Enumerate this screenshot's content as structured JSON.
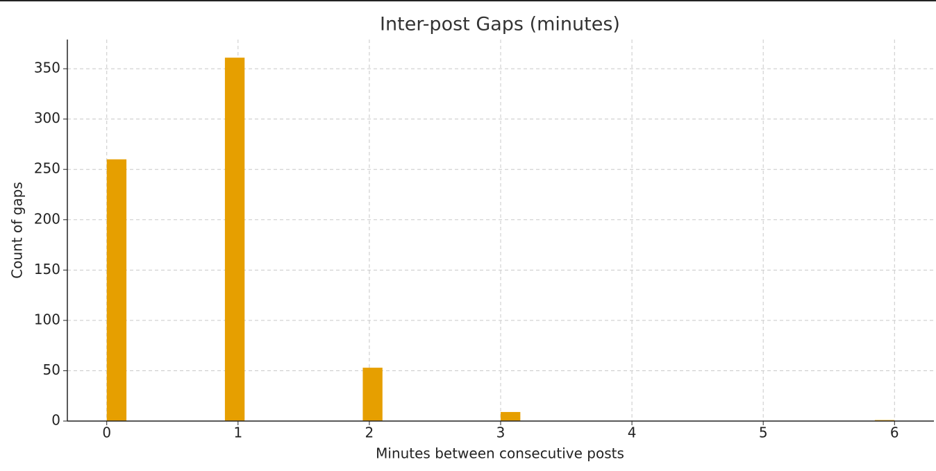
{
  "chart_data": {
    "type": "histogram",
    "title": "Inter-post Gaps (minutes)",
    "xlabel": "Minutes between consecutive posts",
    "ylabel": "Count of gaps",
    "bins": [
      0,
      0.15,
      0.3,
      0.45,
      0.6,
      0.75,
      0.9,
      1.05,
      1.2,
      1.35,
      1.5,
      1.65,
      1.8,
      1.95,
      2.1,
      2.25,
      2.4,
      2.55,
      2.7,
      2.85,
      3,
      3.15,
      3.3,
      3.45,
      3.6,
      3.75,
      3.9,
      4.05,
      4.2,
      4.35,
      4.5,
      4.65,
      4.8,
      4.95,
      5.1,
      5.25,
      5.4,
      5.55,
      5.7,
      5.85,
      6
    ],
    "values": [
      260,
      0,
      0,
      0,
      0,
      0,
      361,
      0,
      0,
      0,
      0,
      0,
      0,
      53,
      0,
      0,
      0,
      0,
      0,
      0,
      9,
      0,
      0,
      0,
      0,
      0,
      0,
      0,
      0,
      0,
      0,
      0,
      0,
      0,
      0,
      0,
      0,
      0,
      0,
      1
    ],
    "color": "#e69f00",
    "xlim": [
      -0.3,
      6.3
    ],
    "xticks": [
      0,
      1,
      2,
      3,
      4,
      5,
      6
    ],
    "ylim": [
      0,
      379
    ],
    "yticks": [
      0,
      50,
      100,
      150,
      200,
      250,
      300,
      350
    ],
    "grid": true
  }
}
